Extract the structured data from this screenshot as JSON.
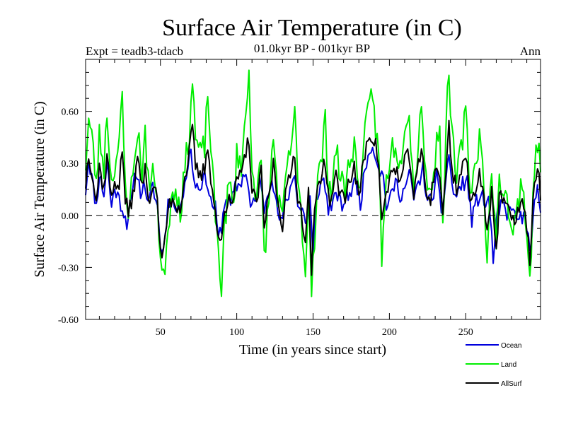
{
  "chart_data": {
    "type": "line",
    "title": "Surface Air Temperature (in C)",
    "subtitle": "01.0kyr BP - 001kyr BP",
    "experiment": "Expt = teadb3-tdacb",
    "season": "Ann",
    "xlabel": "Time (in years since start)",
    "ylabel": "Surface Air Temperature (in C)",
    "xlim": [
      1,
      299
    ],
    "ylim": [
      -0.6,
      0.9
    ],
    "xticks": [
      50,
      100,
      150,
      200,
      250
    ],
    "xtick_labels": [
      "50",
      "100",
      "150",
      "200",
      "250"
    ],
    "yticks": [
      -0.6,
      -0.3,
      0.0,
      0.3,
      0.6
    ],
    "ytick_labels": [
      "-0.60",
      "-0.30",
      "0.00",
      "0.30",
      "0.60"
    ],
    "reference_line": 0.0,
    "legend_position": "bottom-right",
    "anchors": {
      "ocean": [
        [
          1,
          0.14
        ],
        [
          3,
          0.33
        ],
        [
          5,
          0.22
        ],
        [
          8,
          0.05
        ],
        [
          10,
          0.24
        ],
        [
          13,
          0.12
        ],
        [
          15,
          0.31
        ],
        [
          18,
          0.05
        ],
        [
          20,
          0.16
        ],
        [
          23,
          0.09
        ],
        [
          26,
          0.02
        ],
        [
          28,
          -0.04
        ],
        [
          31,
          0.08
        ],
        [
          34,
          0.26
        ],
        [
          37,
          0.14
        ],
        [
          40,
          0.18
        ],
        [
          42,
          0.05
        ],
        [
          45,
          0.17
        ],
        [
          48,
          0.05
        ],
        [
          50,
          -0.18
        ],
        [
          52,
          -0.2
        ],
        [
          55,
          0.07
        ],
        [
          58,
          0.1
        ],
        [
          60,
          0.02
        ],
        [
          63,
          0.07
        ],
        [
          66,
          0.19
        ],
        [
          70,
          0.38
        ],
        [
          72,
          0.2
        ],
        [
          75,
          0.16
        ],
        [
          78,
          0.21
        ],
        [
          80,
          0.22
        ],
        [
          83,
          0.08
        ],
        [
          86,
          0.04
        ],
        [
          88,
          -0.14
        ],
        [
          90,
          -0.06
        ],
        [
          93,
          0.12
        ],
        [
          96,
          0.06
        ],
        [
          99,
          0.16
        ],
        [
          102,
          0.18
        ],
        [
          106,
          0.26
        ],
        [
          109,
          0.05
        ],
        [
          112,
          0.07
        ],
        [
          115,
          0.2
        ],
        [
          118,
          0.04
        ],
        [
          120,
          0.12
        ],
        [
          123,
          0.24
        ],
        [
          126,
          0.05
        ],
        [
          129,
          -0.05
        ],
        [
          132,
          0.07
        ],
        [
          135,
          0.15
        ],
        [
          138,
          0.26
        ],
        [
          140,
          0.05
        ],
        [
          143,
          0.03
        ],
        [
          146,
          -0.05
        ],
        [
          148,
          0.1
        ],
        [
          150,
          -0.26
        ],
        [
          152,
          0.07
        ],
        [
          154,
          0.16
        ],
        [
          157,
          0.21
        ],
        [
          160,
          0.04
        ],
        [
          163,
          0.07
        ],
        [
          166,
          0.12
        ],
        [
          169,
          0.05
        ],
        [
          172,
          0.11
        ],
        [
          175,
          0.14
        ],
        [
          178,
          0.2
        ],
        [
          181,
          0.07
        ],
        [
          184,
          0.26
        ],
        [
          187,
          0.4
        ],
        [
          190,
          0.38
        ],
        [
          193,
          0.28
        ],
        [
          196,
          0.22
        ],
        [
          198,
          0.06
        ],
        [
          201,
          0.1
        ],
        [
          204,
          0.2
        ],
        [
          207,
          0.12
        ],
        [
          210,
          0.15
        ],
        [
          213,
          0.24
        ],
        [
          216,
          0.1
        ],
        [
          219,
          0.18
        ],
        [
          222,
          0.27
        ],
        [
          225,
          0.07
        ],
        [
          228,
          0.1
        ],
        [
          231,
          0.22
        ],
        [
          234,
          0.02
        ],
        [
          236,
          0.13
        ],
        [
          239,
          0.36
        ],
        [
          242,
          0.1
        ],
        [
          245,
          0.14
        ],
        [
          248,
          0.18
        ],
        [
          251,
          0.2
        ],
        [
          254,
          -0.03
        ],
        [
          257,
          0.08
        ],
        [
          260,
          0.12
        ],
        [
          263,
          0.06
        ],
        [
          265,
          0.1
        ],
        [
          268,
          -0.24
        ],
        [
          271,
          0.01
        ],
        [
          274,
          0.07
        ],
        [
          277,
          -0.02
        ],
        [
          280,
          0.07
        ],
        [
          283,
          -0.04
        ],
        [
          285,
          0.0
        ],
        [
          288,
          -0.02
        ],
        [
          290,
          -0.08
        ],
        [
          293,
          -0.2
        ],
        [
          295,
          0.05
        ],
        [
          297,
          0.16
        ],
        [
          299,
          -0.02
        ]
      ],
      "land": [
        [
          1,
          0.3
        ],
        [
          3,
          0.55
        ],
        [
          5,
          0.46
        ],
        [
          8,
          0.18
        ],
        [
          10,
          0.46
        ],
        [
          13,
          0.28
        ],
        [
          15,
          0.6
        ],
        [
          18,
          0.18
        ],
        [
          20,
          0.3
        ],
        [
          23,
          0.4
        ],
        [
          25,
          0.68
        ],
        [
          27,
          0.15
        ],
        [
          29,
          0.05
        ],
        [
          32,
          0.22
        ],
        [
          35,
          0.5
        ],
        [
          38,
          0.26
        ],
        [
          40,
          0.45
        ],
        [
          43,
          0.15
        ],
        [
          46,
          0.26
        ],
        [
          48,
          0.1
        ],
        [
          50,
          -0.27
        ],
        [
          52,
          -0.38
        ],
        [
          55,
          -0.05
        ],
        [
          58,
          0.14
        ],
        [
          60,
          0.18
        ],
        [
          63,
          0.02
        ],
        [
          66,
          0.26
        ],
        [
          69,
          0.5
        ],
        [
          71,
          0.79
        ],
        [
          73,
          0.45
        ],
        [
          76,
          0.35
        ],
        [
          79,
          0.4
        ],
        [
          81,
          0.7
        ],
        [
          84,
          0.25
        ],
        [
          86,
          0.0
        ],
        [
          88,
          -0.2
        ],
        [
          90,
          -0.41
        ],
        [
          92,
          -0.05
        ],
        [
          95,
          0.18
        ],
        [
          98,
          0.05
        ],
        [
          100,
          0.35
        ],
        [
          103,
          0.3
        ],
        [
          106,
          0.57
        ],
        [
          108,
          0.82
        ],
        [
          110,
          0.3
        ],
        [
          113,
          0.1
        ],
        [
          116,
          0.3
        ],
        [
          118,
          -0.24
        ],
        [
          121,
          0.08
        ],
        [
          124,
          0.45
        ],
        [
          127,
          0.12
        ],
        [
          130,
          -0.05
        ],
        [
          132,
          0.22
        ],
        [
          135,
          0.35
        ],
        [
          138,
          0.62
        ],
        [
          140,
          0.15
        ],
        [
          142,
          0.05
        ],
        [
          145,
          -0.35
        ],
        [
          147,
          0.16
        ],
        [
          149,
          -0.4
        ],
        [
          151,
          -0.12
        ],
        [
          153,
          0.2
        ],
        [
          156,
          0.35
        ],
        [
          158,
          0.55
        ],
        [
          160,
          0.2
        ],
        [
          162,
          0.15
        ],
        [
          165,
          0.38
        ],
        [
          168,
          0.22
        ],
        [
          171,
          0.15
        ],
        [
          174,
          0.32
        ],
        [
          177,
          0.42
        ],
        [
          180,
          0.12
        ],
        [
          183,
          0.4
        ],
        [
          186,
          0.58
        ],
        [
          189,
          0.72
        ],
        [
          191,
          0.5
        ],
        [
          193,
          0.35
        ],
        [
          195,
          -0.26
        ],
        [
          198,
          0.2
        ],
        [
          201,
          0.38
        ],
        [
          204,
          0.42
        ],
        [
          207,
          0.28
        ],
        [
          210,
          0.55
        ],
        [
          213,
          0.6
        ],
        [
          216,
          0.12
        ],
        [
          219,
          0.45
        ],
        [
          221,
          0.66
        ],
        [
          224,
          0.22
        ],
        [
          227,
          0.1
        ],
        [
          230,
          0.35
        ],
        [
          233,
          0.55
        ],
        [
          235,
          -0.12
        ],
        [
          237,
          0.5
        ],
        [
          239,
          0.86
        ],
        [
          241,
          0.45
        ],
        [
          244,
          0.2
        ],
        [
          247,
          0.38
        ],
        [
          250,
          0.6
        ],
        [
          253,
          0.14
        ],
        [
          256,
          0.28
        ],
        [
          259,
          0.46
        ],
        [
          262,
          0.2
        ],
        [
          264,
          -0.3
        ],
        [
          267,
          0.3
        ],
        [
          270,
          -0.22
        ],
        [
          272,
          0.22
        ],
        [
          275,
          0.15
        ],
        [
          278,
          0.05
        ],
        [
          281,
          -0.12
        ],
        [
          284,
          0.05
        ],
        [
          287,
          0.22
        ],
        [
          290,
          -0.1
        ],
        [
          292,
          -0.38
        ],
        [
          294,
          0.05
        ],
        [
          296,
          0.38
        ],
        [
          298,
          0.48
        ],
        [
          299,
          0.2
        ]
      ],
      "allsurf": [
        [
          1,
          0.18
        ],
        [
          3,
          0.36
        ],
        [
          5,
          0.27
        ],
        [
          8,
          0.08
        ],
        [
          10,
          0.28
        ],
        [
          13,
          0.15
        ],
        [
          15,
          0.36
        ],
        [
          18,
          0.08
        ],
        [
          20,
          0.2
        ],
        [
          23,
          0.18
        ],
        [
          25,
          0.38
        ],
        [
          27,
          0.1
        ],
        [
          29,
          0.0
        ],
        [
          32,
          0.12
        ],
        [
          35,
          0.32
        ],
        [
          38,
          0.18
        ],
        [
          40,
          0.25
        ],
        [
          43,
          0.09
        ],
        [
          46,
          0.2
        ],
        [
          48,
          0.06
        ],
        [
          50,
          -0.2
        ],
        [
          52,
          -0.24
        ],
        [
          55,
          0.04
        ],
        [
          58,
          0.11
        ],
        [
          60,
          0.06
        ],
        [
          63,
          0.05
        ],
        [
          66,
          0.21
        ],
        [
          69,
          0.37
        ],
        [
          71,
          0.5
        ],
        [
          73,
          0.28
        ],
        [
          76,
          0.22
        ],
        [
          79,
          0.27
        ],
        [
          81,
          0.42
        ],
        [
          84,
          0.13
        ],
        [
          86,
          0.03
        ],
        [
          88,
          -0.16
        ],
        [
          90,
          -0.15
        ],
        [
          92,
          0.02
        ],
        [
          95,
          0.14
        ],
        [
          98,
          0.06
        ],
        [
          100,
          0.22
        ],
        [
          103,
          0.22
        ],
        [
          106,
          0.36
        ],
        [
          108,
          0.45
        ],
        [
          110,
          0.12
        ],
        [
          113,
          0.08
        ],
        [
          116,
          0.24
        ],
        [
          118,
          -0.06
        ],
        [
          121,
          0.1
        ],
        [
          124,
          0.3
        ],
        [
          127,
          0.08
        ],
        [
          130,
          -0.05
        ],
        [
          132,
          0.12
        ],
        [
          135,
          0.22
        ],
        [
          138,
          0.38
        ],
        [
          140,
          0.08
        ],
        [
          142,
          0.04
        ],
        [
          145,
          -0.13
        ],
        [
          147,
          0.12
        ],
        [
          149,
          -0.3
        ],
        [
          151,
          0.0
        ],
        [
          153,
          0.17
        ],
        [
          156,
          0.26
        ],
        [
          158,
          0.32
        ],
        [
          160,
          0.1
        ],
        [
          162,
          0.1
        ],
        [
          165,
          0.22
        ],
        [
          168,
          0.12
        ],
        [
          171,
          0.12
        ],
        [
          174,
          0.2
        ],
        [
          177,
          0.28
        ],
        [
          180,
          0.09
        ],
        [
          183,
          0.31
        ],
        [
          186,
          0.46
        ],
        [
          189,
          0.46
        ],
        [
          191,
          0.4
        ],
        [
          193,
          0.3
        ],
        [
          195,
          -0.04
        ],
        [
          198,
          0.12
        ],
        [
          201,
          0.24
        ],
        [
          204,
          0.28
        ],
        [
          207,
          0.18
        ],
        [
          210,
          0.3
        ],
        [
          213,
          0.36
        ],
        [
          216,
          0.11
        ],
        [
          219,
          0.28
        ],
        [
          221,
          0.38
        ],
        [
          224,
          0.14
        ],
        [
          227,
          0.1
        ],
        [
          230,
          0.27
        ],
        [
          233,
          0.25
        ],
        [
          235,
          -0.03
        ],
        [
          237,
          0.26
        ],
        [
          239,
          0.52
        ],
        [
          241,
          0.26
        ],
        [
          244,
          0.16
        ],
        [
          247,
          0.25
        ],
        [
          250,
          0.36
        ],
        [
          253,
          0.05
        ],
        [
          256,
          0.16
        ],
        [
          259,
          0.24
        ],
        [
          262,
          0.1
        ],
        [
          264,
          -0.08
        ],
        [
          267,
          0.16
        ],
        [
          270,
          -0.22
        ],
        [
          272,
          0.09
        ],
        [
          275,
          0.1
        ],
        [
          278,
          0.01
        ],
        [
          281,
          -0.04
        ],
        [
          284,
          0.03
        ],
        [
          287,
          0.08
        ],
        [
          290,
          -0.08
        ],
        [
          292,
          -0.25
        ],
        [
          294,
          0.05
        ],
        [
          296,
          0.25
        ],
        [
          298,
          0.28
        ],
        [
          299,
          0.05
        ]
      ]
    },
    "series": [
      {
        "name": "Ocean",
        "key": "ocean",
        "color": "#0000dd",
        "seed": 11,
        "noise": 0.045
      },
      {
        "name": "Land",
        "key": "land",
        "color": "#00ee00",
        "seed": 23,
        "noise": 0.08
      },
      {
        "name": "AllSurf",
        "key": "allsurf",
        "color": "#000000",
        "seed": 37,
        "noise": 0.05
      }
    ]
  }
}
